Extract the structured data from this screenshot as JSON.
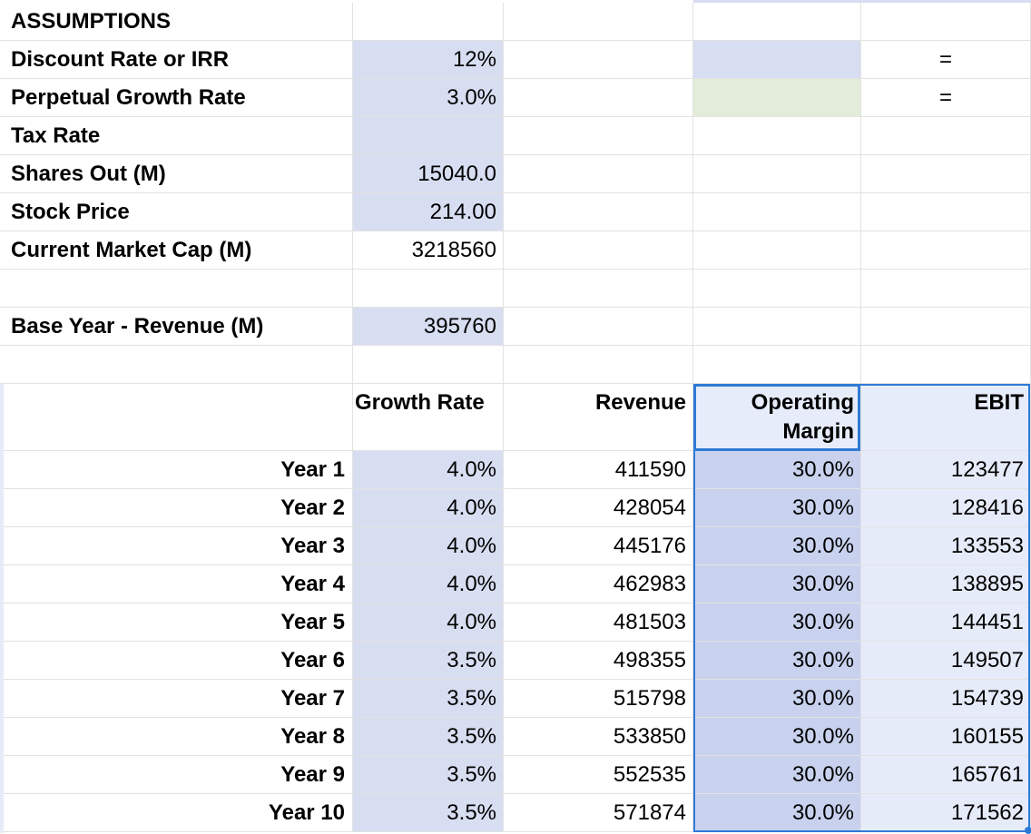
{
  "assumptions": {
    "title": "ASSUMPTIONS",
    "discount_label": "Discount Rate or IRR",
    "discount_value": "12%",
    "growth_label": "Perpetual Growth Rate",
    "growth_value": "3.0%",
    "tax_label": "Tax Rate",
    "tax_value": "",
    "shares_label": "Shares Out (M)",
    "shares_value": "15040.0",
    "price_label": "Stock Price",
    "price_value": "214.00",
    "mktcap_label": "Current Market Cap (M)",
    "mktcap_value": "3218560",
    "base_label": "Base Year - Revenue (M)",
    "base_value": "395760",
    "eq1": "=",
    "eq2": "="
  },
  "table": {
    "headers": {
      "growth": "Growth Rate",
      "revenue": "Revenue",
      "margin_line1": "Operating",
      "margin_line2": "Margin",
      "ebit": "EBIT"
    },
    "rows": [
      {
        "year": "Year 1",
        "growth": "4.0%",
        "revenue": "411590",
        "margin": "30.0%",
        "ebit": "123477"
      },
      {
        "year": "Year 2",
        "growth": "4.0%",
        "revenue": "428054",
        "margin": "30.0%",
        "ebit": "128416"
      },
      {
        "year": "Year 3",
        "growth": "4.0%",
        "revenue": "445176",
        "margin": "30.0%",
        "ebit": "133553"
      },
      {
        "year": "Year 4",
        "growth": "4.0%",
        "revenue": "462983",
        "margin": "30.0%",
        "ebit": "138895"
      },
      {
        "year": "Year 5",
        "growth": "4.0%",
        "revenue": "481503",
        "margin": "30.0%",
        "ebit": "144451"
      },
      {
        "year": "Year 6",
        "growth": "3.5%",
        "revenue": "498355",
        "margin": "30.0%",
        "ebit": "149507"
      },
      {
        "year": "Year 7",
        "growth": "3.5%",
        "revenue": "515798",
        "margin": "30.0%",
        "ebit": "154739"
      },
      {
        "year": "Year 8",
        "growth": "3.5%",
        "revenue": "533850",
        "margin": "30.0%",
        "ebit": "160155"
      },
      {
        "year": "Year 9",
        "growth": "3.5%",
        "revenue": "552535",
        "margin": "30.0%",
        "ebit": "165761"
      },
      {
        "year": "Year 10",
        "growth": "3.5%",
        "revenue": "571874",
        "margin": "30.0%",
        "ebit": "171562"
      }
    ]
  },
  "colors": {
    "input_blue": "#d8def1",
    "input_green": "#e2ecd9",
    "selection_blue": "#2f7ad6"
  }
}
